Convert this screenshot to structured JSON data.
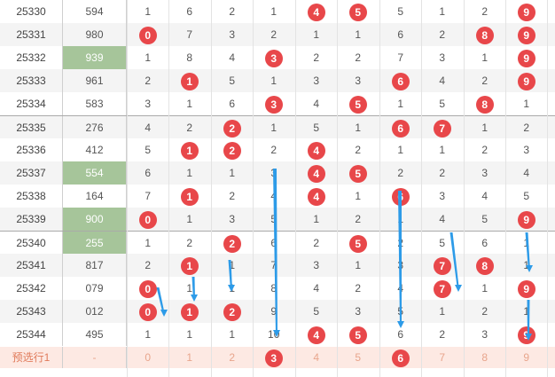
{
  "colors": {
    "hit": "#e8474a",
    "highlight_draw": "#a6c59a",
    "arrow": "#2d9be8",
    "predict_bg": "#fde9e3"
  },
  "rows": [
    {
      "issue": "25330",
      "draw": "594",
      "draw_green": false,
      "cells": [
        "1",
        "6",
        "2",
        "1",
        "4",
        "5",
        "5",
        "1",
        "2",
        "9"
      ],
      "hits": [
        4,
        5,
        9
      ]
    },
    {
      "issue": "25331",
      "draw": "980",
      "draw_green": false,
      "cells": [
        "0",
        "7",
        "3",
        "2",
        "1",
        "1",
        "6",
        "2",
        "8",
        "9"
      ],
      "hits": [
        0,
        8,
        9
      ]
    },
    {
      "issue": "25332",
      "draw": "939",
      "draw_green": true,
      "cells": [
        "1",
        "8",
        "4",
        "3",
        "2",
        "2",
        "7",
        "3",
        "1",
        "9"
      ],
      "hits": [
        3,
        9
      ]
    },
    {
      "issue": "25333",
      "draw": "961",
      "draw_green": false,
      "cells": [
        "2",
        "1",
        "5",
        "1",
        "3",
        "3",
        "6",
        "4",
        "2",
        "9"
      ],
      "hits": [
        1,
        6,
        9
      ]
    },
    {
      "issue": "25334",
      "draw": "583",
      "draw_green": false,
      "cells": [
        "3",
        "1",
        "6",
        "3",
        "4",
        "5",
        "1",
        "5",
        "8",
        "1"
      ],
      "hits": [
        3,
        5,
        8
      ]
    },
    {
      "issue": "25335",
      "draw": "276",
      "draw_green": false,
      "cells": [
        "4",
        "2",
        "2",
        "1",
        "5",
        "1",
        "6",
        "7",
        "1",
        "2"
      ],
      "hits": [
        2,
        6,
        7
      ]
    },
    {
      "issue": "25336",
      "draw": "412",
      "draw_green": false,
      "cells": [
        "5",
        "1",
        "2",
        "2",
        "4",
        "2",
        "1",
        "1",
        "2",
        "3"
      ],
      "hits": [
        1,
        2,
        4
      ]
    },
    {
      "issue": "25337",
      "draw": "554",
      "draw_green": true,
      "cells": [
        "6",
        "1",
        "1",
        "3",
        "4",
        "5",
        "2",
        "2",
        "3",
        "4"
      ],
      "hits": [
        4,
        5
      ]
    },
    {
      "issue": "25338",
      "draw": "164",
      "draw_green": false,
      "cells": [
        "7",
        "1",
        "2",
        "4",
        "4",
        "1",
        "6",
        "3",
        "4",
        "5"
      ],
      "hits": [
        1,
        4,
        6
      ]
    },
    {
      "issue": "25339",
      "draw": "900",
      "draw_green": true,
      "cells": [
        "0",
        "1",
        "3",
        "5",
        "1",
        "2",
        "1",
        "4",
        "5",
        "9"
      ],
      "hits": [
        0,
        9
      ]
    },
    {
      "issue": "25340",
      "draw": "255",
      "draw_green": true,
      "cells": [
        "1",
        "2",
        "2",
        "6",
        "2",
        "5",
        "2",
        "5",
        "6",
        "1"
      ],
      "hits": [
        2,
        5
      ]
    },
    {
      "issue": "25341",
      "draw": "817",
      "draw_green": false,
      "cells": [
        "2",
        "1",
        "1",
        "7",
        "3",
        "1",
        "3",
        "7",
        "8",
        "1"
      ],
      "hits": [
        1,
        7,
        8
      ]
    },
    {
      "issue": "25342",
      "draw": "079",
      "draw_green": false,
      "cells": [
        "0",
        "1",
        "1",
        "8",
        "4",
        "2",
        "4",
        "7",
        "1",
        "9"
      ],
      "hits": [
        0,
        7,
        9
      ]
    },
    {
      "issue": "25343",
      "draw": "012",
      "draw_green": false,
      "cells": [
        "0",
        "1",
        "2",
        "9",
        "5",
        "3",
        "5",
        "1",
        "2",
        "1"
      ],
      "hits": [
        0,
        1,
        2
      ]
    },
    {
      "issue": "25344",
      "draw": "495",
      "draw_green": false,
      "cells": [
        "1",
        "1",
        "1",
        "10",
        "4",
        "5",
        "6",
        "2",
        "3",
        "9"
      ],
      "hits": [
        4,
        5,
        9
      ]
    }
  ],
  "predict_row": {
    "issue": "预选行1",
    "draw": "-",
    "cells": [
      "0",
      "1",
      "2",
      "3",
      "4",
      "5",
      "6",
      "7",
      "8",
      "9"
    ],
    "hits": [
      3,
      6
    ]
  }
}
